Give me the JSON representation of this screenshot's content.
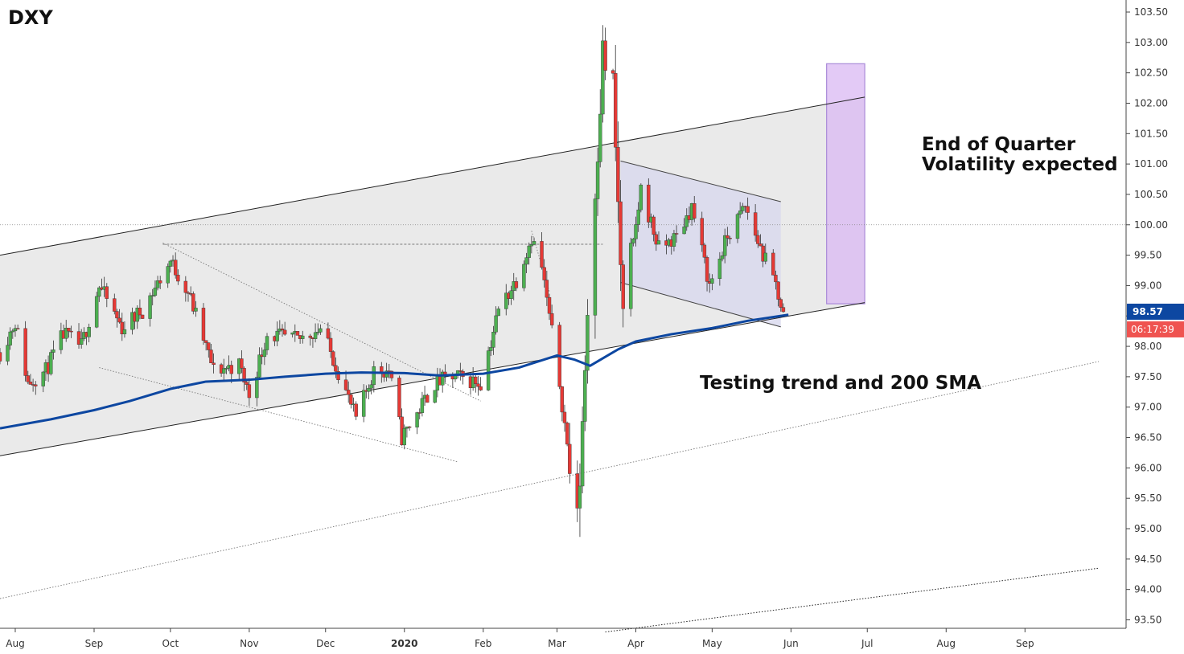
{
  "chart_data": {
    "type": "candlestick",
    "title": "DXY",
    "ylim": [
      93.3,
      103.7
    ],
    "y_ticks": [
      "103.50",
      "103.00",
      "102.50",
      "102.00",
      "101.50",
      "101.00",
      "100.50",
      "100.00",
      "99.50",
      "99.00",
      "98.50",
      "98.00",
      "97.50",
      "97.00",
      "96.50",
      "96.00",
      "95.50",
      "95.00",
      "94.50",
      "94.00",
      "93.50"
    ],
    "x_ticks": [
      {
        "label": "Aug",
        "date": "2019-08-01",
        "bold": false
      },
      {
        "label": "Sep",
        "date": "2019-09-01",
        "bold": false
      },
      {
        "label": "Oct",
        "date": "2019-10-01",
        "bold": false
      },
      {
        "label": "Nov",
        "date": "2019-11-01",
        "bold": false
      },
      {
        "label": "Dec",
        "date": "2019-12-01",
        "bold": false
      },
      {
        "label": "2020",
        "date": "2020-01-01",
        "bold": true
      },
      {
        "label": "Feb",
        "date": "2020-02-01",
        "bold": false
      },
      {
        "label": "Mar",
        "date": "2020-03-01",
        "bold": false
      },
      {
        "label": "Apr",
        "date": "2020-04-01",
        "bold": false
      },
      {
        "label": "May",
        "date": "2020-05-01",
        "bold": false
      },
      {
        "label": "Jun",
        "date": "2020-06-01",
        "bold": false
      },
      {
        "label": "Jul",
        "date": "2020-07-01",
        "bold": false
      },
      {
        "label": "Aug",
        "date": "2020-08-01",
        "bold": false
      },
      {
        "label": "Sep",
        "date": "2020-09-01",
        "bold": false
      }
    ],
    "close_path": [
      [
        "2019-07-26",
        97.9
      ],
      [
        "2019-08-01",
        98.4
      ],
      [
        "2019-08-06",
        97.4
      ],
      [
        "2019-08-13",
        97.6
      ],
      [
        "2019-08-20",
        98.2
      ],
      [
        "2019-08-27",
        98.0
      ],
      [
        "2019-09-03",
        99.0
      ],
      [
        "2019-09-12",
        98.3
      ],
      [
        "2019-09-20",
        98.6
      ],
      [
        "2019-10-01",
        99.4
      ],
      [
        "2019-10-08",
        98.9
      ],
      [
        "2019-10-18",
        97.6
      ],
      [
        "2019-10-28",
        97.7
      ],
      [
        "2019-11-01",
        97.2
      ],
      [
        "2019-11-08",
        98.2
      ],
      [
        "2019-11-20",
        98.1
      ],
      [
        "2019-11-29",
        98.3
      ],
      [
        "2019-12-05",
        97.7
      ],
      [
        "2019-12-13",
        96.8
      ],
      [
        "2019-12-20",
        97.6
      ],
      [
        "2019-12-26",
        97.6
      ],
      [
        "2019-12-31",
        96.5
      ],
      [
        "2020-01-06",
        96.9
      ],
      [
        "2020-01-13",
        97.4
      ],
      [
        "2020-01-21",
        97.5
      ],
      [
        "2020-01-31",
        97.4
      ],
      [
        "2020-02-07",
        98.6
      ],
      [
        "2020-02-14",
        99.1
      ],
      [
        "2020-02-20",
        99.8
      ],
      [
        "2020-02-24",
        99.3
      ],
      [
        "2020-03-02",
        97.4
      ],
      [
        "2020-03-09",
        95.0
      ],
      [
        "2020-03-13",
        98.6
      ],
      [
        "2020-03-19",
        102.8
      ],
      [
        "2020-03-23",
        102.2
      ],
      [
        "2020-03-27",
        98.4
      ],
      [
        "2020-04-03",
        100.6
      ],
      [
        "2020-04-10",
        99.6
      ],
      [
        "2020-04-17",
        99.8
      ],
      [
        "2020-04-23",
        100.3
      ],
      [
        "2020-04-30",
        99.0
      ],
      [
        "2020-05-07",
        99.8
      ],
      [
        "2020-05-14",
        100.3
      ],
      [
        "2020-05-21",
        99.5
      ],
      [
        "2020-05-26",
        99.0
      ],
      [
        "2020-05-29",
        98.57
      ]
    ],
    "sma200": {
      "name": "200 SMA",
      "points": [
        [
          "2019-07-26",
          96.65
        ],
        [
          "2019-08-15",
          96.8
        ],
        [
          "2019-09-01",
          96.95
        ],
        [
          "2019-09-15",
          97.1
        ],
        [
          "2019-10-01",
          97.3
        ],
        [
          "2019-10-15",
          97.42
        ],
        [
          "2019-11-01",
          97.45
        ],
        [
          "2019-11-15",
          97.5
        ],
        [
          "2019-12-01",
          97.55
        ],
        [
          "2019-12-15",
          97.57
        ],
        [
          "2020-01-01",
          97.56
        ],
        [
          "2020-01-15",
          97.52
        ],
        [
          "2020-02-01",
          97.55
        ],
        [
          "2020-02-15",
          97.65
        ],
        [
          "2020-03-01",
          97.85
        ],
        [
          "2020-03-08",
          97.78
        ],
        [
          "2020-03-14",
          97.68
        ],
        [
          "2020-03-25",
          97.95
        ],
        [
          "2020-04-01",
          98.08
        ],
        [
          "2020-04-15",
          98.2
        ],
        [
          "2020-05-01",
          98.3
        ],
        [
          "2020-05-15",
          98.42
        ],
        [
          "2020-05-31",
          98.52
        ]
      ]
    },
    "channel": {
      "upper": [
        [
          "2019-07-26",
          99.5
        ],
        [
          "2020-06-30",
          102.1
        ]
      ],
      "lower": [
        [
          "2019-07-26",
          96.2
        ],
        [
          "2020-06-30",
          98.72
        ]
      ]
    },
    "falling_wedge": {
      "upper": [
        [
          "2020-03-26",
          101.05
        ],
        [
          "2020-05-28",
          100.38
        ]
      ],
      "lower": [
        [
          "2020-03-26",
          99.05
        ],
        [
          "2020-05-28",
          98.32
        ]
      ]
    },
    "dotted_lines": [
      {
        "name": "lower-trend",
        "from": [
          "2019-07-26",
          93.85
        ],
        "to": [
          "2020-09-30",
          97.75
        ]
      },
      {
        "name": "deep-trend",
        "from": [
          "2020-03-20",
          93.3
        ],
        "to": [
          "2020-09-30",
          94.35
        ]
      },
      {
        "name": "resistance-oct-jan",
        "from": [
          "2019-09-28",
          99.7
        ],
        "to": [
          "2020-01-31",
          97.1
        ]
      },
      {
        "name": "support-sep-jan",
        "from": [
          "2019-09-03",
          97.65
        ],
        "to": [
          "2020-01-22",
          96.1
        ]
      },
      {
        "name": "feb-slide",
        "from": [
          "2020-02-20",
          99.9
        ],
        "to": [
          "2020-02-27",
          98.9
        ]
      }
    ],
    "horizontal_levels": [
      {
        "name": "oct-high",
        "value": 99.68,
        "from": "2019-09-28",
        "to": "2020-03-19",
        "style": "dashed"
      },
      {
        "name": "round-100",
        "value": 100.0,
        "style": "dotted"
      }
    ],
    "volatility_box": {
      "from": "2020-06-15",
      "to": "2020-06-30",
      "y_low": 98.7,
      "y_high": 102.65
    },
    "annotations": [
      {
        "name": "end-of-quarter",
        "lines": [
          "End of Quarter",
          "Volatility expected"
        ]
      },
      {
        "name": "testing-trend",
        "lines": [
          "Testing trend and 200 SMA"
        ]
      }
    ],
    "last_price": {
      "label": "98.57",
      "value": 98.57,
      "color": "#0d47a1"
    },
    "countdown": {
      "label": "06:17:39",
      "color": "#ef5350"
    },
    "colors": {
      "up": "#4caf50",
      "down": "#e53935",
      "sma": "#0d47a1",
      "channel_fill": "#e6e6e6",
      "box_fill": "#d9b8f3",
      "box_stroke": "#a98ad8"
    }
  }
}
